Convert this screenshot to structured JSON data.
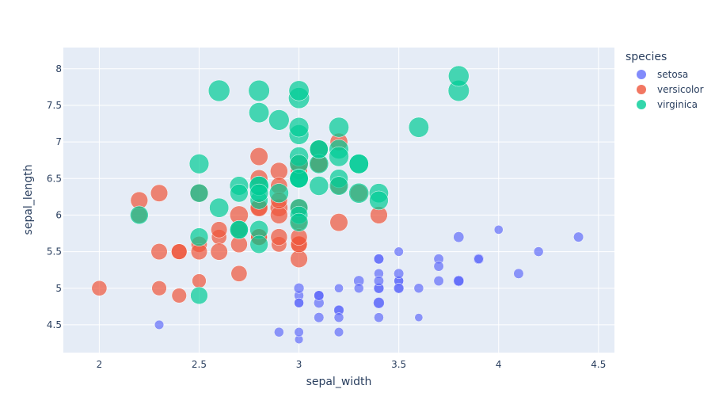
{
  "chart_data": {
    "type": "scatter",
    "title": "",
    "xlabel": "sepal_width",
    "ylabel": "sepal_length",
    "size_variable": "petal_length",
    "xlim": [
      1.82,
      4.58
    ],
    "ylim": [
      4.12,
      8.29
    ],
    "xticks": [
      2,
      2.5,
      3,
      3.5,
      4,
      4.5
    ],
    "xtick_labels": [
      "2",
      "2.5",
      "3",
      "3.5",
      "4",
      "4.5"
    ],
    "yticks": [
      4.5,
      5,
      5.5,
      6,
      6.5,
      7,
      7.5,
      8
    ],
    "ytick_labels": [
      "4.5",
      "5",
      "5.5",
      "6",
      "6.5",
      "7",
      "7.5",
      "8"
    ],
    "grid": true,
    "legend_title": "species",
    "legend_position": "right",
    "series": [
      {
        "name": "setosa",
        "color": "#636efa",
        "x": [
          3.5,
          3.0,
          3.2,
          3.1,
          3.6,
          3.9,
          3.4,
          3.4,
          2.9,
          3.1,
          3.7,
          3.4,
          3.0,
          3.0,
          4.0,
          4.4,
          3.9,
          3.5,
          3.8,
          3.8,
          3.4,
          3.7,
          3.6,
          3.3,
          3.4,
          3.0,
          3.4,
          3.5,
          3.4,
          3.2,
          3.1,
          3.4,
          4.1,
          4.2,
          3.1,
          3.2,
          3.5,
          3.1,
          3.0,
          3.4,
          3.5,
          2.3,
          3.2,
          3.5,
          3.8,
          3.0,
          3.8,
          3.2,
          3.7,
          3.3
        ],
        "y": [
          5.1,
          4.9,
          4.7,
          4.6,
          5.0,
          5.4,
          4.6,
          5.0,
          4.4,
          4.9,
          5.4,
          4.8,
          4.8,
          4.3,
          5.8,
          5.7,
          5.4,
          5.1,
          5.7,
          5.1,
          5.4,
          5.1,
          4.6,
          5.1,
          4.8,
          5.0,
          5.0,
          5.2,
          5.2,
          4.7,
          4.8,
          5.4,
          5.2,
          5.5,
          4.9,
          5.0,
          5.5,
          4.9,
          4.4,
          5.1,
          5.0,
          4.5,
          4.4,
          5.0,
          5.1,
          4.8,
          5.1,
          4.6,
          5.3,
          5.0
        ],
        "size": [
          1.4,
          1.4,
          1.3,
          1.5,
          1.4,
          1.7,
          1.4,
          1.5,
          1.4,
          1.5,
          1.5,
          1.6,
          1.4,
          1.1,
          1.2,
          1.5,
          1.3,
          1.4,
          1.7,
          1.5,
          1.7,
          1.5,
          1.0,
          1.7,
          1.9,
          1.6,
          1.6,
          1.5,
          1.4,
          1.6,
          1.6,
          1.5,
          1.5,
          1.4,
          1.5,
          1.2,
          1.3,
          1.5,
          1.3,
          1.5,
          1.3,
          1.3,
          1.3,
          1.6,
          1.9,
          1.4,
          1.6,
          1.4,
          1.5,
          1.4
        ]
      },
      {
        "name": "versicolor",
        "color": "#EF553B",
        "x": [
          3.2,
          3.2,
          3.1,
          2.3,
          2.8,
          2.8,
          3.3,
          2.4,
          2.9,
          2.7,
          2.0,
          3.0,
          2.2,
          2.9,
          2.9,
          3.1,
          3.0,
          2.7,
          2.2,
          2.5,
          3.2,
          2.8,
          2.5,
          2.8,
          2.9,
          3.0,
          2.8,
          3.0,
          2.9,
          2.6,
          2.4,
          2.4,
          2.7,
          2.7,
          3.0,
          3.4,
          3.1,
          2.3,
          3.0,
          2.5,
          2.6,
          3.0,
          2.6,
          2.3,
          2.7,
          3.0,
          2.9,
          2.9,
          2.5,
          2.8
        ],
        "y": [
          7.0,
          6.4,
          6.9,
          5.5,
          6.5,
          5.7,
          6.3,
          4.9,
          6.6,
          5.2,
          5.0,
          5.9,
          6.0,
          6.1,
          5.6,
          6.7,
          5.6,
          5.8,
          6.2,
          5.6,
          5.9,
          6.1,
          6.3,
          6.1,
          6.4,
          6.6,
          6.8,
          6.7,
          6.0,
          5.7,
          5.5,
          5.5,
          5.8,
          6.0,
          5.4,
          6.0,
          6.7,
          6.3,
          5.6,
          5.5,
          5.5,
          6.1,
          5.8,
          5.0,
          5.6,
          5.7,
          5.7,
          6.2,
          5.1,
          5.7
        ],
        "size": [
          4.7,
          4.5,
          4.9,
          4.0,
          4.6,
          4.5,
          4.7,
          3.3,
          4.6,
          3.9,
          3.5,
          4.2,
          4.0,
          4.7,
          3.6,
          4.4,
          4.5,
          4.1,
          4.5,
          3.9,
          4.8,
          4.0,
          4.9,
          4.7,
          4.3,
          4.4,
          4.8,
          5.0,
          4.5,
          3.5,
          3.8,
          3.7,
          3.9,
          5.1,
          4.5,
          4.5,
          4.7,
          4.4,
          4.1,
          4.0,
          4.4,
          4.6,
          4.0,
          3.3,
          4.2,
          4.2,
          4.2,
          4.3,
          3.0,
          4.1
        ]
      },
      {
        "name": "virginica",
        "color": "#00cc96",
        "x": [
          3.3,
          2.7,
          3.0,
          2.9,
          3.0,
          3.0,
          2.5,
          2.9,
          2.5,
          3.6,
          3.2,
          2.7,
          3.0,
          2.5,
          2.8,
          3.2,
          3.0,
          3.8,
          2.6,
          2.2,
          3.2,
          2.8,
          2.8,
          2.7,
          3.3,
          3.2,
          2.8,
          3.0,
          2.8,
          3.0,
          2.8,
          3.8,
          2.8,
          2.8,
          2.6,
          3.0,
          3.4,
          3.1,
          3.0,
          3.1,
          3.1,
          3.1,
          2.7,
          3.2,
          3.3,
          3.0,
          2.5,
          3.0,
          3.4,
          3.0
        ],
        "y": [
          6.3,
          5.8,
          7.1,
          6.3,
          6.5,
          7.6,
          4.9,
          7.3,
          6.7,
          7.2,
          6.5,
          6.4,
          6.8,
          5.7,
          5.8,
          6.4,
          6.5,
          7.7,
          7.7,
          6.0,
          6.9,
          5.6,
          7.7,
          6.3,
          6.7,
          7.2,
          6.2,
          6.1,
          6.4,
          7.2,
          7.4,
          7.9,
          6.4,
          6.3,
          6.1,
          7.7,
          6.3,
          6.4,
          6.0,
          6.9,
          6.7,
          6.9,
          5.8,
          6.8,
          6.7,
          6.7,
          6.3,
          6.5,
          6.2,
          5.9
        ],
        "size": [
          6.0,
          5.1,
          5.9,
          5.6,
          5.8,
          6.6,
          4.5,
          6.3,
          5.8,
          6.1,
          5.1,
          5.3,
          5.5,
          5.0,
          5.1,
          5.3,
          5.5,
          6.7,
          6.9,
          5.0,
          5.7,
          4.9,
          6.7,
          4.9,
          5.7,
          6.0,
          4.8,
          4.9,
          5.6,
          5.8,
          6.1,
          6.4,
          5.6,
          5.1,
          5.6,
          6.1,
          5.6,
          5.5,
          4.8,
          5.4,
          5.6,
          5.1,
          5.1,
          5.9,
          5.7,
          5.2,
          5.0,
          5.2,
          5.4,
          5.1
        ]
      }
    ]
  },
  "legend": {
    "title": "species",
    "items": [
      {
        "label": "setosa",
        "color": "#636efa"
      },
      {
        "label": "versicolor",
        "color": "#EF553B"
      },
      {
        "label": "virginica",
        "color": "#00cc96"
      }
    ]
  }
}
